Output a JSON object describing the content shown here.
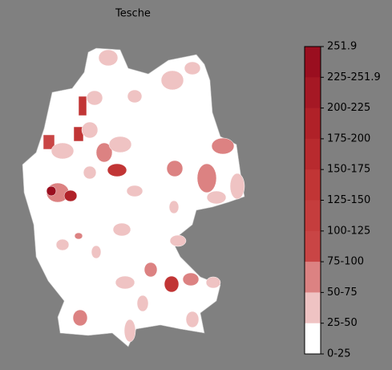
{
  "title": "Tesche",
  "colorbar": {
    "labels": [
      "251.9",
      "225-251.9",
      "200-225",
      "175-200",
      "150-175",
      "125-150",
      "100-125",
      "75-100",
      "50-75",
      "25-50",
      "0-25"
    ],
    "colors": [
      "#9a0e1f",
      "#a51824",
      "#b02128",
      "#b82a2e",
      "#c13535",
      "#c53d3d",
      "#c94545",
      "#dc8282",
      "#efc3c3",
      "#ffffff"
    ]
  }
}
